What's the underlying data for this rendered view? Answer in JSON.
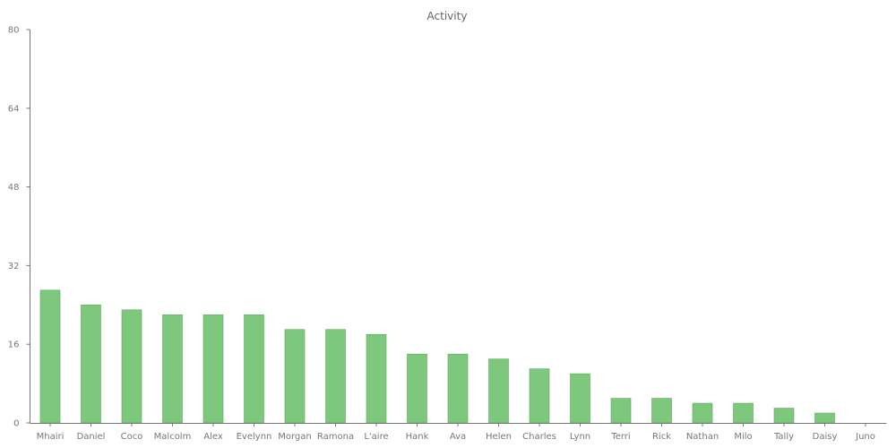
{
  "chart_data": {
    "type": "bar",
    "title": "Activity",
    "xlabel": "",
    "ylabel": "",
    "categories": [
      "Mhairi",
      "Daniel",
      "Coco",
      "Malcolm",
      "Alex",
      "Evelynn",
      "Morgan",
      "Ramona",
      "L'aire",
      "Hank",
      "Ava",
      "Helen",
      "Charles",
      "Lynn",
      "Terri",
      "Rick",
      "Nathan",
      "Milo",
      "Tally",
      "Daisy",
      "Juno"
    ],
    "values": [
      27,
      24,
      23,
      22,
      22,
      22,
      19,
      19,
      18,
      14,
      14,
      13,
      11,
      10,
      5,
      5,
      4,
      4,
      3,
      2,
      0
    ],
    "ylim": [
      0,
      80
    ],
    "yticks": [
      "0",
      "16",
      "32",
      "48",
      "64",
      "80"
    ],
    "grid": false,
    "bar_color": "#7dc87d",
    "bar_border_color": "#5ea85e"
  }
}
